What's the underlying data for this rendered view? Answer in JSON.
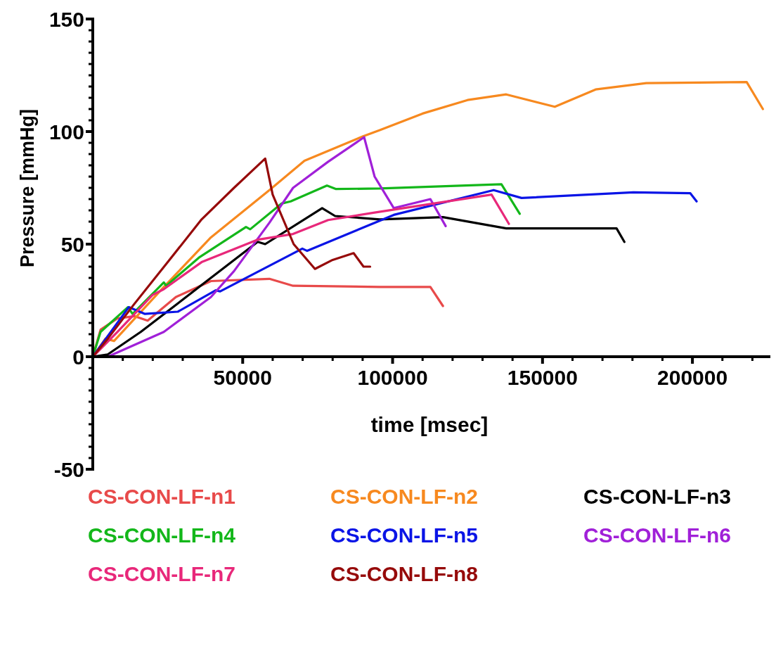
{
  "chart_data": {
    "type": "line",
    "xlabel": "time [msec]",
    "ylabel": "Pressure [mmHg]",
    "xlim": [
      0,
      226000
    ],
    "ylim": [
      -50,
      150
    ],
    "xticks": [
      {
        "value": 10000,
        "label": null
      },
      {
        "value": 20000,
        "label": null
      },
      {
        "value": 30000,
        "label": null
      },
      {
        "value": 40000,
        "label": null
      },
      50000,
      {
        "value": 60000,
        "label": null
      },
      {
        "value": 70000,
        "label": null
      },
      {
        "value": 80000,
        "label": null
      },
      {
        "value": 90000,
        "label": null
      },
      100000,
      {
        "value": 110000,
        "label": null
      },
      {
        "value": 120000,
        "label": null
      },
      {
        "value": 130000,
        "label": null
      },
      {
        "value": 140000,
        "label": null
      },
      150000,
      {
        "value": 160000,
        "label": null
      },
      {
        "value": 170000,
        "label": null
      },
      {
        "value": 180000,
        "label": null
      },
      {
        "value": 190000,
        "label": null
      },
      200000,
      {
        "value": 210000,
        "label": null
      },
      {
        "value": 220000,
        "label": null
      }
    ],
    "yticks": [
      -50,
      {
        "value": -45,
        "label": null
      },
      {
        "value": -40,
        "label": null
      },
      {
        "value": -35,
        "label": null
      },
      {
        "value": -30,
        "label": null
      },
      {
        "value": -25,
        "label": null
      },
      {
        "value": -20,
        "label": null
      },
      {
        "value": -15,
        "label": null
      },
      {
        "value": -10,
        "label": null
      },
      {
        "value": -5,
        "label": null
      },
      0,
      {
        "value": 5,
        "label": null
      },
      {
        "value": 10,
        "label": null
      },
      {
        "value": 15,
        "label": null
      },
      {
        "value": 20,
        "label": null
      },
      {
        "value": 25,
        "label": null
      },
      {
        "value": 30,
        "label": null
      },
      {
        "value": 35,
        "label": null
      },
      {
        "value": 40,
        "label": null
      },
      {
        "value": 45,
        "label": null
      },
      50,
      {
        "value": 55,
        "label": null
      },
      {
        "value": 60,
        "label": null
      },
      {
        "value": 65,
        "label": null
      },
      {
        "value": 70,
        "label": null
      },
      {
        "value": 75,
        "label": null
      },
      {
        "value": 80,
        "label": null
      },
      {
        "value": 85,
        "label": null
      },
      {
        "value": 90,
        "label": null
      },
      {
        "value": 95,
        "label": null
      },
      100,
      {
        "value": 105,
        "label": null
      },
      {
        "value": 110,
        "label": null
      },
      {
        "value": 115,
        "label": null
      },
      {
        "value": 120,
        "label": null
      },
      {
        "value": 125,
        "label": null
      },
      {
        "value": 130,
        "label": null
      },
      {
        "value": 135,
        "label": null
      },
      {
        "value": 140,
        "label": null
      },
      {
        "value": 145,
        "label": null
      },
      150
    ],
    "grid": false,
    "legend": "bottom",
    "marker": "none",
    "line_style": "solid",
    "series": [
      {
        "name": "CS-CON-LF-n1",
        "color": "#e84a4a",
        "x": [
          0,
          2600,
          8200,
          14000,
          18300,
          27700,
          39400,
          58900,
          66800,
          95700,
          112600,
          116800
        ],
        "values": [
          0,
          12,
          17,
          18,
          16,
          26.5,
          33.6,
          34.6,
          31.5,
          31,
          31,
          22.5
        ]
      },
      {
        "name": "CS-CON-LF-n2",
        "color": "#f7891f",
        "x": [
          0,
          4200,
          7100,
          23700,
          39400,
          58900,
          70600,
          90300,
          95700,
          110000,
          125000,
          137900,
          154100,
          167700,
          184600,
          218100,
          223500
        ],
        "values": [
          0,
          8,
          7,
          31,
          53,
          74,
          87,
          98,
          100.6,
          108,
          114,
          116.5,
          111,
          118.7,
          121.5,
          122,
          110
        ]
      },
      {
        "name": "CS-CON-LF-n3",
        "color": "#000000",
        "x": [
          0,
          5000,
          16000,
          35500,
          55000,
          57500,
          76500,
          80800,
          95700,
          116800,
          137900,
          174700,
          177300
        ],
        "values": [
          0,
          1,
          11,
          31,
          51,
          50,
          66,
          62.5,
          61,
          62,
          57,
          57,
          51
        ]
      },
      {
        "name": "CS-CON-LF-n4",
        "color": "#13b71a",
        "x": [
          0,
          2600,
          11700,
          13300,
          23700,
          24500,
          35400,
          51100,
          52500,
          62900,
          66000,
          78100,
          81000,
          95700,
          136300,
          142400
        ],
        "values": [
          0,
          11,
          22,
          19,
          33,
          31.5,
          44,
          57.6,
          56.6,
          68,
          69,
          76,
          74.5,
          74.7,
          76.6,
          63.5
        ]
      },
      {
        "name": "CS-CON-LF-n5",
        "color": "#0a14e6",
        "x": [
          0,
          12000,
          17400,
          28400,
          41000,
          42500,
          69900,
          71500,
          100400,
          133700,
          143000,
          180300,
          199300,
          201400
        ],
        "values": [
          0,
          22,
          19,
          20,
          29.5,
          29,
          48,
          47,
          63,
          74,
          70.5,
          73,
          72.6,
          69
        ]
      },
      {
        "name": "CS-CON-LF-n6",
        "color": "#a020d8",
        "x": [
          0,
          5000,
          23700,
          39400,
          47100,
          58900,
          66800,
          78500,
          90500,
          94000,
          100400,
          112600,
          117700
        ],
        "values": [
          0,
          0,
          11,
          26.5,
          38,
          59.5,
          75,
          86.6,
          97.5,
          80,
          66,
          70,
          58
        ]
      },
      {
        "name": "CS-CON-LF-n7",
        "color": "#e8287a",
        "x": [
          0,
          8200,
          19900,
          23700,
          36300,
          55100,
          66800,
          78500,
          94000,
          133000,
          138800
        ],
        "values": [
          0,
          11,
          27.4,
          30,
          42,
          52,
          54.5,
          60.7,
          64,
          72,
          59
        ]
      },
      {
        "name": "CS-CON-LF-n8",
        "color": "#960a0a",
        "x": [
          0,
          5000,
          13600,
          25000,
          36300,
          47100,
          57500,
          60000,
          67000,
          74100,
          80000,
          87000,
          90300,
          92500
        ],
        "values": [
          0,
          8,
          23,
          42,
          61,
          75,
          88,
          72,
          50,
          39,
          43,
          46,
          40,
          40
        ]
      }
    ]
  }
}
